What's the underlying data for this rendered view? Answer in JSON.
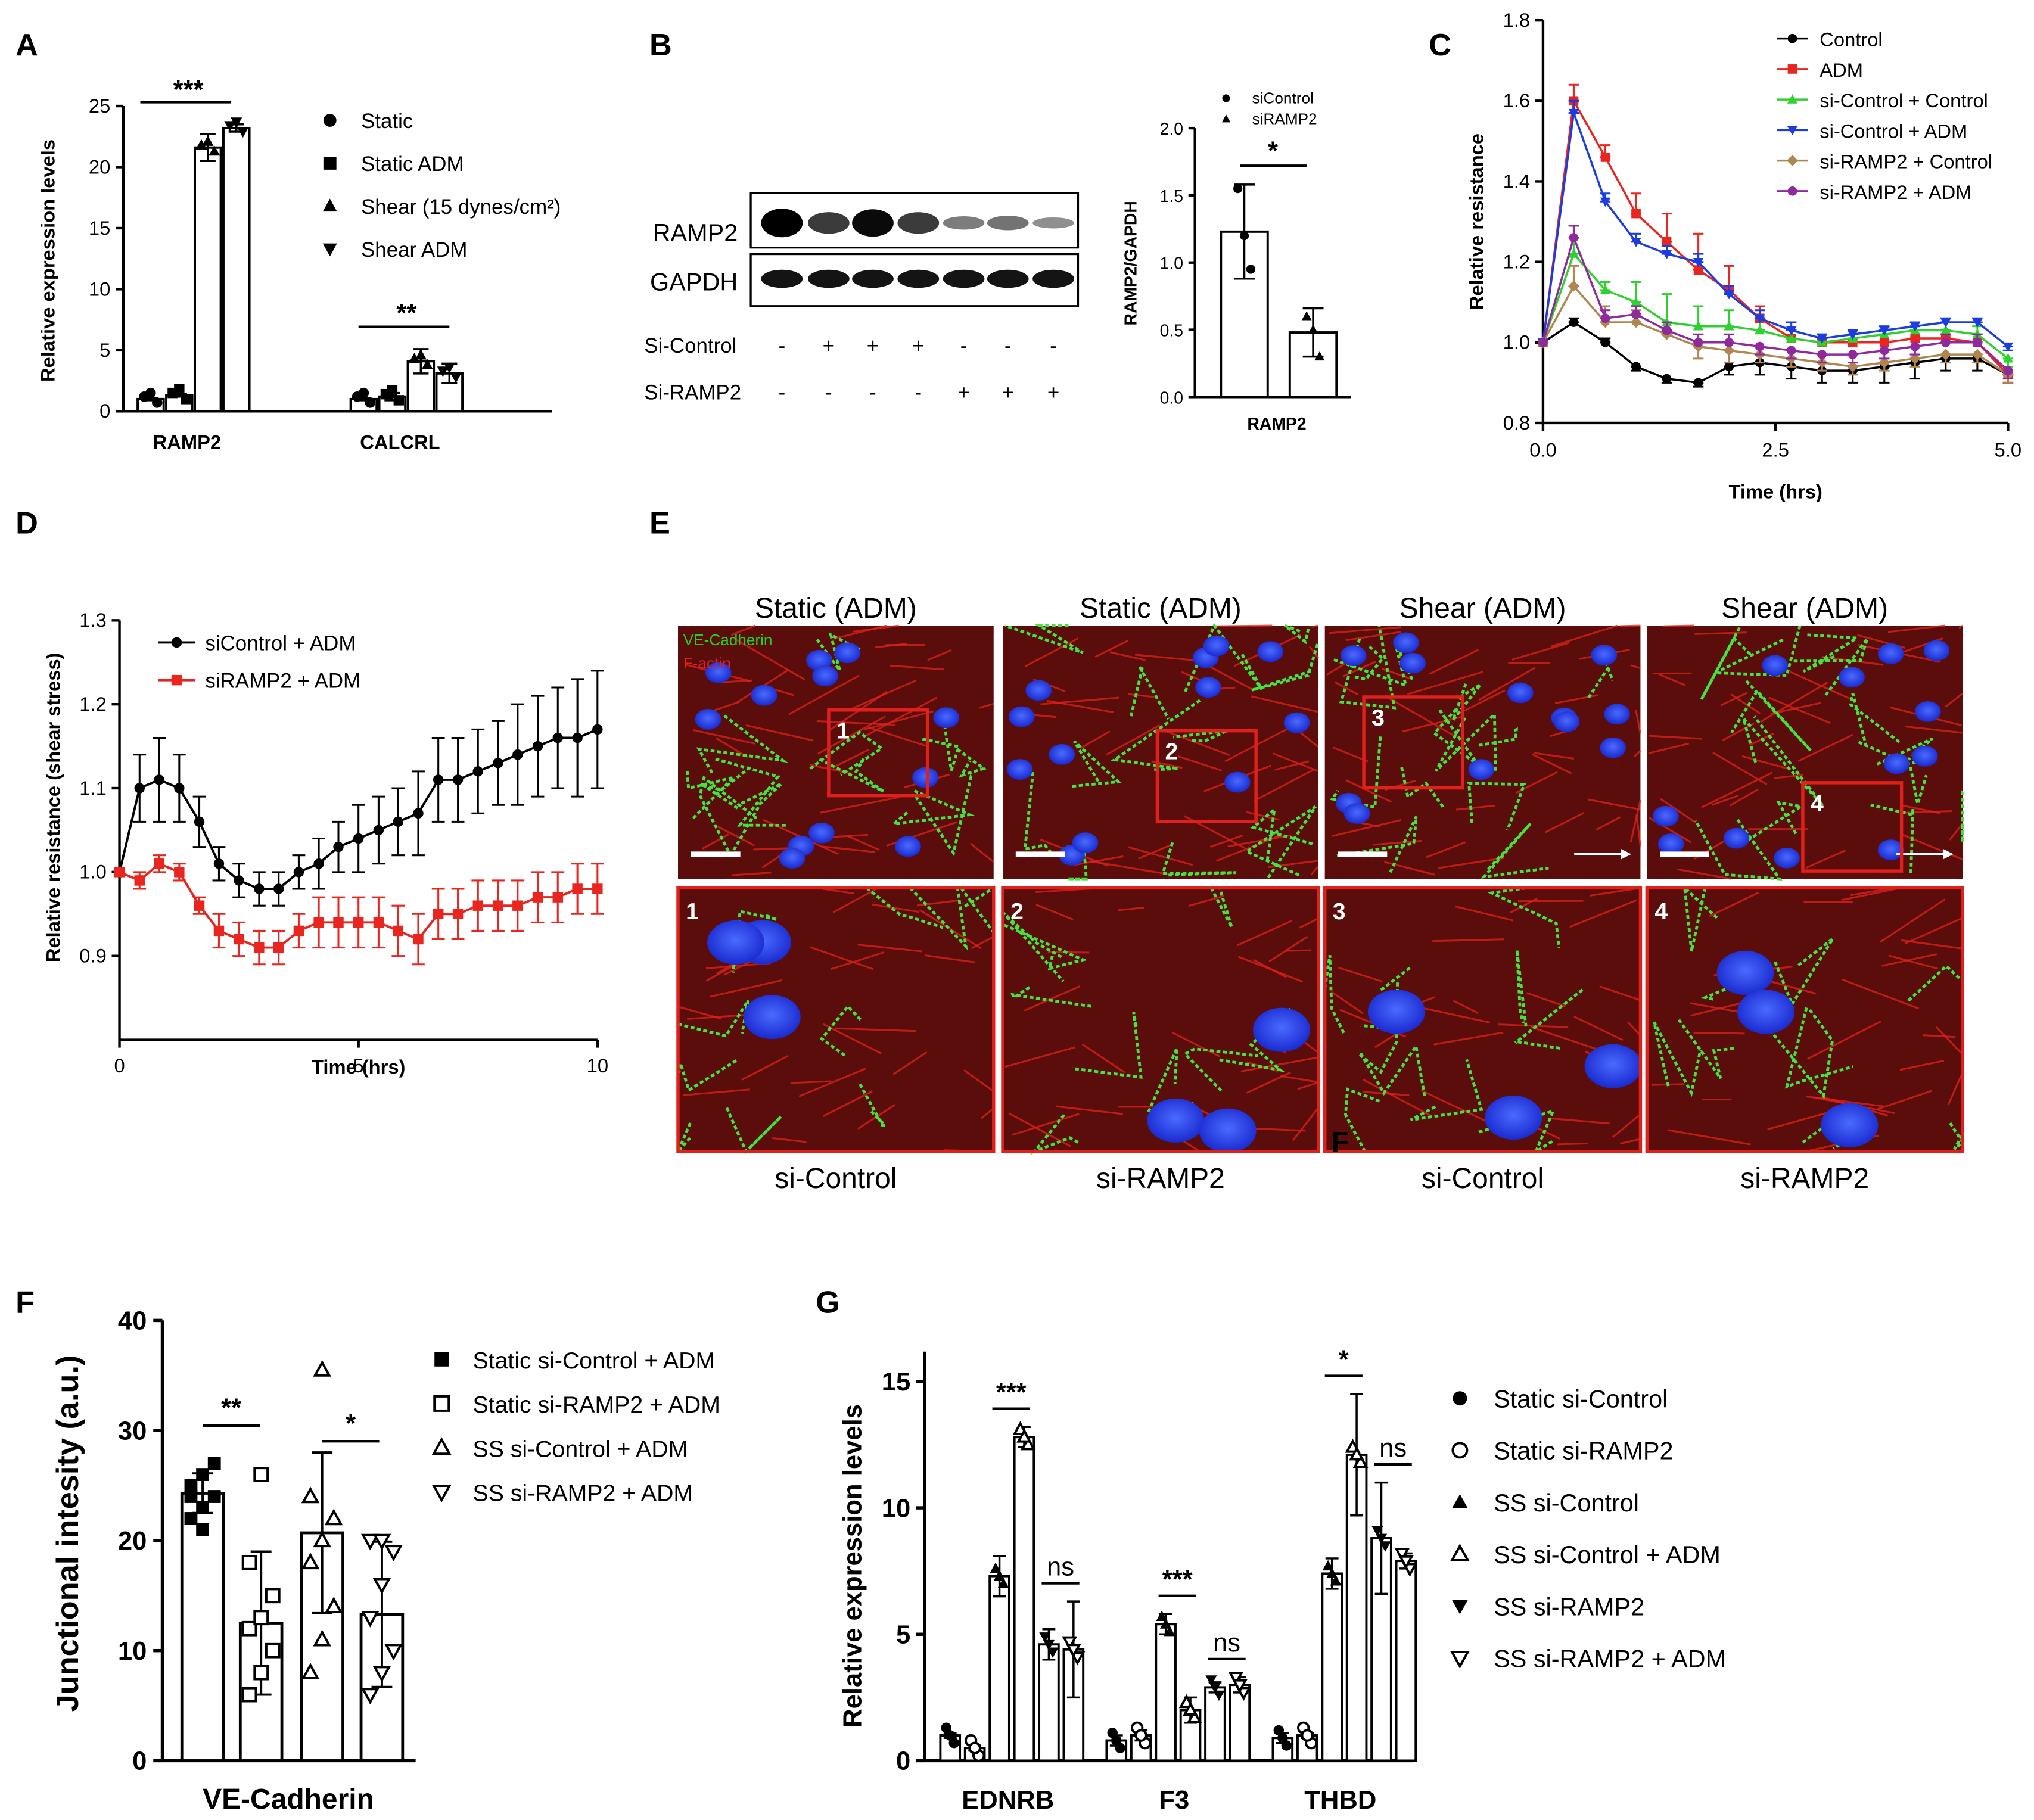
{
  "panels": {
    "A": {
      "letter": "A",
      "chart_data": {
        "type": "bar",
        "ylabel": "Relative expression levels",
        "ylim": [
          0,
          25
        ],
        "yticks": [
          "0",
          "5",
          "10",
          "15",
          "20",
          "25"
        ],
        "categories": [
          "RAMP2",
          "CALCRL"
        ],
        "series": [
          {
            "name": "Static",
            "marker": "circle",
            "values": [
              1.0,
              1.0
            ]
          },
          {
            "name": "Static ADM",
            "marker": "square",
            "values": [
              1.3,
              1.2
            ]
          },
          {
            "name": "Shear (15 dynes/cm²)",
            "marker": "triangle-up",
            "values": [
              21.6,
              4.1
            ]
          },
          {
            "name": "Shear ADM",
            "marker": "triangle-down",
            "values": [
              23.2,
              3.1
            ]
          }
        ],
        "errors": [
          [
            0.1,
            0.1,
            1.1,
            0.3
          ],
          [
            0.1,
            0.3,
            1.0,
            0.8
          ]
        ],
        "significance": [
          {
            "label": "***",
            "category": "RAMP2"
          },
          {
            "label": "**",
            "category": "CALCRL"
          }
        ]
      }
    },
    "B": {
      "letter": "B",
      "blot": {
        "rows": [
          "RAMP2",
          "GAPDH"
        ],
        "conditions": [
          {
            "label": "Si-Control",
            "signs": [
              "-",
              "+",
              "+",
              "+",
              "-",
              "-",
              "-"
            ]
          },
          {
            "label": "Si-RAMP2",
            "signs": [
              "-",
              "-",
              "-",
              "-",
              "+",
              "+",
              "+"
            ]
          }
        ],
        "ramp2_band_strength": [
          1.0,
          0.7,
          0.95,
          0.7,
          0.35,
          0.4,
          0.25
        ]
      },
      "chart_data": {
        "type": "bar",
        "ylabel": "RAMP2/GAPDH",
        "xlabel": "RAMP2",
        "ylim": [
          0,
          2.0
        ],
        "yticks": [
          "0.0",
          "0.5",
          "1.0",
          "1.5",
          "2.0"
        ],
        "legend": [
          {
            "name": "siControl",
            "marker": "circle"
          },
          {
            "name": "siRAMP2",
            "marker": "triangle-up"
          }
        ],
        "values": [
          1.23,
          0.48
        ],
        "errors": [
          0.35,
          0.18
        ],
        "points": [
          [
            1.55,
            1.2,
            0.95
          ],
          [
            0.6,
            0.5,
            0.3
          ]
        ],
        "significance": "*"
      }
    },
    "C": {
      "letter": "C",
      "chart_data": {
        "type": "line",
        "ylabel": "Relative resistance",
        "xlabel": "Time (hrs)",
        "xlim": [
          0,
          5
        ],
        "ylim": [
          0.8,
          1.8
        ],
        "xticks": [
          0,
          2.5,
          5
        ],
        "xtick_labels": [
          "0.0",
          "2.5",
          "5.0"
        ],
        "yticks": [
          0.8,
          1.0,
          1.2,
          1.4,
          1.6,
          1.8
        ],
        "ytick_labels": [
          "0.8",
          "1.0",
          "1.2",
          "1.4",
          "1.6",
          "1.8"
        ],
        "x": [
          0,
          0.33,
          0.67,
          1.0,
          1.33,
          1.67,
          2.0,
          2.33,
          2.67,
          3.0,
          3.33,
          3.67,
          4.0,
          4.33,
          4.67,
          5.0
        ],
        "series": [
          {
            "name": "Control",
            "color": "#000000",
            "marker": "circle",
            "values": [
              1.0,
              1.05,
              1.0,
              0.94,
              0.91,
              0.9,
              0.94,
              0.95,
              0.94,
              0.93,
              0.93,
              0.94,
              0.95,
              0.96,
              0.96,
              0.92
            ],
            "errors": [
              0,
              0.01,
              0.01,
              0.01,
              0.01,
              0.01,
              0.02,
              0.03,
              0.03,
              0.03,
              0.03,
              0.04,
              0.04,
              0.03,
              0.03,
              0.02
            ]
          },
          {
            "name": "ADM",
            "color": "#e8251e",
            "marker": "square",
            "values": [
              1.0,
              1.6,
              1.46,
              1.32,
              1.25,
              1.18,
              1.13,
              1.06,
              1.01,
              1.0,
              1.0,
              1.0,
              1.01,
              1.01,
              1.0,
              0.92
            ],
            "errors": [
              0,
              0.04,
              0.03,
              0.05,
              0.07,
              0.09,
              0.06,
              0.03,
              0.02,
              0.02,
              0.02,
              0.02,
              0.02,
              0.02,
              0.02,
              0.02
            ]
          },
          {
            "name": "si-Control + Control",
            "color": "#2ed12e",
            "marker": "triangle-up",
            "values": [
              1.0,
              1.22,
              1.13,
              1.1,
              1.05,
              1.04,
              1.04,
              1.03,
              1.01,
              1.0,
              1.01,
              1.02,
              1.03,
              1.03,
              1.02,
              0.96
            ],
            "errors": [
              0,
              0.07,
              0.02,
              0.05,
              0.07,
              0.05,
              0.04,
              0.03,
              0.02,
              0.02,
              0.02,
              0.02,
              0.02,
              0.02,
              0.02,
              0.02
            ]
          },
          {
            "name": "si-Control + ADM",
            "color": "#1b3de0",
            "marker": "triangle-down",
            "values": [
              1.0,
              1.57,
              1.35,
              1.25,
              1.22,
              1.2,
              1.12,
              1.06,
              1.03,
              1.01,
              1.02,
              1.03,
              1.04,
              1.05,
              1.05,
              0.99
            ],
            "errors": [
              0,
              0.03,
              0.02,
              0.02,
              0.02,
              0.02,
              0.02,
              0.02,
              0.02,
              0.01,
              0.01,
              0.01,
              0.01,
              0.01,
              0.01,
              0.01
            ]
          },
          {
            "name": "si-RAMP2 + Control",
            "color": "#b08650",
            "marker": "diamond",
            "values": [
              1.0,
              1.14,
              1.05,
              1.05,
              1.02,
              0.99,
              0.98,
              0.97,
              0.96,
              0.95,
              0.94,
              0.95,
              0.96,
              0.97,
              0.97,
              0.92
            ],
            "errors": [
              0,
              0.05,
              0.04,
              0.03,
              0.03,
              0.03,
              0.03,
              0.02,
              0.02,
              0.02,
              0.02,
              0.02,
              0.02,
              0.02,
              0.02,
              0.02
            ]
          },
          {
            "name": "si-RAMP2 + ADM",
            "color": "#8e2a9e",
            "marker": "circle",
            "values": [
              1.0,
              1.26,
              1.06,
              1.07,
              1.03,
              1.0,
              1.0,
              0.99,
              0.98,
              0.97,
              0.97,
              0.98,
              0.99,
              1.0,
              1.0,
              0.93
            ],
            "errors": [
              0,
              0.03,
              0.02,
              0.02,
              0.02,
              0.02,
              0.02,
              0.02,
              0.02,
              0.02,
              0.02,
              0.02,
              0.02,
              0.02,
              0.02,
              0.02
            ]
          }
        ]
      }
    },
    "D": {
      "letter": "D",
      "chart_data": {
        "type": "line",
        "ylabel": "Relative resistance (shear stress)",
        "xlabel": "Time (hrs)",
        "xlim": [
          0,
          10
        ],
        "ylim": [
          0.8,
          1.3
        ],
        "xticks": [
          0,
          5,
          10
        ],
        "xtick_labels": [
          "0",
          "5",
          "10"
        ],
        "yticks": [
          0.9,
          1.0,
          1.1,
          1.2,
          1.3
        ],
        "ytick_labels": [
          "0.9",
          "1.0",
          "1.1",
          "1.2",
          "1.3"
        ],
        "x": [
          0,
          0.42,
          0.83,
          1.25,
          1.67,
          2.08,
          2.5,
          2.92,
          3.33,
          3.75,
          4.17,
          4.58,
          5.0,
          5.42,
          5.83,
          6.25,
          6.67,
          7.08,
          7.5,
          7.92,
          8.33,
          8.75,
          9.17,
          9.58,
          10.0
        ],
        "series": [
          {
            "name": "siControl + ADM",
            "color": "#000000",
            "marker": "circle",
            "values": [
              1.0,
              1.1,
              1.11,
              1.1,
              1.06,
              1.01,
              0.99,
              0.98,
              0.98,
              1.0,
              1.01,
              1.03,
              1.04,
              1.05,
              1.06,
              1.07,
              1.11,
              1.11,
              1.12,
              1.13,
              1.14,
              1.15,
              1.16,
              1.16,
              1.17
            ],
            "errors": [
              0,
              0.04,
              0.05,
              0.04,
              0.03,
              0.02,
              0.02,
              0.02,
              0.02,
              0.02,
              0.03,
              0.03,
              0.04,
              0.04,
              0.04,
              0.05,
              0.05,
              0.05,
              0.05,
              0.05,
              0.06,
              0.06,
              0.06,
              0.07,
              0.07
            ]
          },
          {
            "name": "siRAMP2 + ADM",
            "color": "#e8251e",
            "marker": "square",
            "values": [
              1.0,
              0.99,
              1.01,
              1.0,
              0.96,
              0.93,
              0.92,
              0.91,
              0.91,
              0.93,
              0.94,
              0.94,
              0.94,
              0.94,
              0.93,
              0.92,
              0.95,
              0.95,
              0.96,
              0.96,
              0.96,
              0.97,
              0.97,
              0.98,
              0.98
            ],
            "errors": [
              0,
              0.01,
              0.01,
              0.01,
              0.01,
              0.02,
              0.02,
              0.02,
              0.02,
              0.02,
              0.03,
              0.03,
              0.03,
              0.03,
              0.03,
              0.03,
              0.03,
              0.03,
              0.03,
              0.03,
              0.03,
              0.03,
              0.03,
              0.03,
              0.03
            ]
          }
        ]
      }
    },
    "E": {
      "letter": "E",
      "column_titles": [
        "Static (ADM)",
        "Static (ADM)",
        "Shear (ADM)",
        "Shear (ADM)"
      ],
      "bottom_labels": [
        "si-Control",
        "si-RAMP2",
        "si-Control",
        "si-RAMP2"
      ],
      "stain_labels": [
        {
          "text": "VE-Cadherin",
          "color": "#22d022"
        },
        {
          "text": "F-actin",
          "color": "#e02020"
        }
      ],
      "inset_numbers": [
        "1",
        "2",
        "3",
        "4"
      ],
      "stray_letter": "F"
    },
    "F": {
      "letter": "F",
      "chart_data": {
        "type": "bar",
        "ylabel": "Junctional intesity (a.u.)",
        "xlabel": "VE-Cadherin",
        "ylim": [
          0,
          40
        ],
        "yticks": [
          "0",
          "10",
          "20",
          "30",
          "40"
        ],
        "series": [
          {
            "name": "Static si-Control + ADM",
            "marker": "square",
            "value": 24.3,
            "error": 1.8
          },
          {
            "name": "Static si-RAMP2 + ADM",
            "marker": "square-open",
            "value": 12.5,
            "error": 6.5
          },
          {
            "name": "SS si-Control + ADM",
            "marker": "triangle-up-open",
            "value": 20.7,
            "error": 7.3
          },
          {
            "name": "SS si-RAMP2 + ADM",
            "marker": "triangle-down-open",
            "value": 13.3,
            "error": 6.6
          }
        ],
        "points": [
          [
            22,
            23,
            24,
            25,
            26,
            27,
            24,
            21
          ],
          [
            6,
            8,
            10,
            12,
            13,
            15,
            18,
            26
          ],
          [
            8,
            11,
            14,
            18,
            20,
            22,
            24,
            35.5
          ],
          [
            6,
            8,
            10,
            13,
            16,
            19,
            20,
            20
          ]
        ],
        "significance": [
          {
            "label": "**",
            "between": [
              0,
              1
            ]
          },
          {
            "label": "*",
            "between": [
              2,
              3
            ]
          }
        ]
      }
    },
    "G": {
      "letter": "G",
      "chart_data": {
        "type": "bar",
        "ylabel": "Relative expression levels",
        "ylim": [
          0,
          15
        ],
        "yticks": [
          "0",
          "5",
          "10",
          "15"
        ],
        "categories": [
          "EDNRB",
          "F3",
          "THBD"
        ],
        "series": [
          {
            "name": "Static si-Control",
            "marker": "circle",
            "values": [
              1.0,
              0.8,
              0.9
            ]
          },
          {
            "name": "Static si-RAMP2",
            "marker": "circle-open",
            "values": [
              0.5,
              1.0,
              1.0
            ]
          },
          {
            "name": "SS si-Control",
            "marker": "triangle-up",
            "values": [
              7.3,
              5.4,
              7.4
            ]
          },
          {
            "name": "SS si-Control + ADM",
            "marker": "triangle-up-open",
            "values": [
              12.8,
              2.0,
              12.1
            ]
          },
          {
            "name": "SS si-RAMP2",
            "marker": "triangle-down",
            "values": [
              4.6,
              2.9,
              8.8
            ]
          },
          {
            "name": "SS si-RAMP2 + ADM",
            "marker": "triangle-down-open",
            "values": [
              4.4,
              3.0,
              7.9
            ]
          }
        ],
        "errors": [
          [
            0.1,
            0.1,
            0.8,
            0.4,
            0.6,
            1.9
          ],
          [
            0.2,
            0.2,
            0.4,
            0.5,
            0.2,
            0.3
          ],
          [
            0.2,
            0.1,
            0.6,
            2.4,
            2.2,
            0.3
          ]
        ],
        "significance": [
          {
            "label": "***",
            "category": "EDNRB",
            "pair": [
              2,
              3
            ]
          },
          {
            "label": "ns",
            "category": "EDNRB",
            "pair": [
              4,
              5
            ]
          },
          {
            "label": "***",
            "category": "F3",
            "pair": [
              2,
              3
            ]
          },
          {
            "label": "ns",
            "category": "F3",
            "pair": [
              4,
              5
            ]
          },
          {
            "label": "*",
            "category": "THBD",
            "pair": [
              2,
              3
            ]
          },
          {
            "label": "ns",
            "category": "THBD",
            "pair": [
              4,
              5
            ]
          }
        ]
      }
    }
  }
}
